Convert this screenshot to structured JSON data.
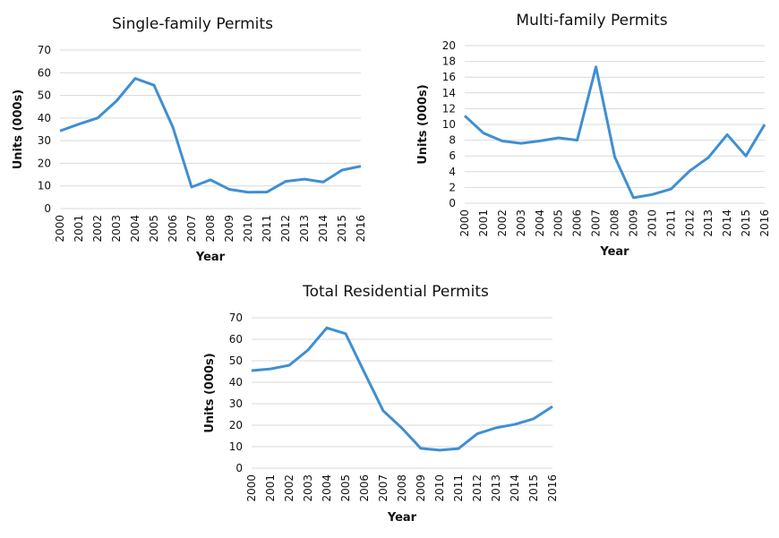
{
  "colors": {
    "line": "#3f8fd2",
    "grid": "#d9d9d9"
  },
  "chart_data": [
    {
      "type": "line",
      "title": "Single-family Permits",
      "xlabel": "Year",
      "ylabel": "Units (000s)",
      "ylim": [
        0,
        70
      ],
      "yticks": [
        0,
        10,
        20,
        30,
        40,
        50,
        60,
        70
      ],
      "grid": true,
      "categories": [
        "2000",
        "2001",
        "2002",
        "2003",
        "2004",
        "2005",
        "2006",
        "2007",
        "2008",
        "2009",
        "2010",
        "2011",
        "2012",
        "2013",
        "2014",
        "2015",
        "2016"
      ],
      "values": [
        34.3,
        37.3,
        40,
        47.5,
        57.5,
        54.5,
        36,
        9.5,
        12.7,
        8.5,
        7.2,
        7.3,
        12,
        13,
        11.7,
        17,
        18.7
      ]
    },
    {
      "type": "line",
      "title": "Multi-family Permits",
      "xlabel": "Year",
      "ylabel": "Units (000s)",
      "ylim": [
        0,
        20
      ],
      "yticks": [
        0,
        2,
        4,
        6,
        8,
        10,
        12,
        14,
        16,
        18,
        20
      ],
      "grid": true,
      "categories": [
        "2000",
        "2001",
        "2002",
        "2003",
        "2004",
        "2005",
        "2006",
        "2007",
        "2008",
        "2009",
        "2010",
        "2011",
        "2012",
        "2013",
        "2014",
        "2015",
        "2016"
      ],
      "values": [
        11.1,
        8.9,
        7.9,
        7.6,
        7.9,
        8.3,
        8.0,
        17.3,
        5.9,
        0.7,
        1.1,
        1.8,
        4.1,
        5.8,
        8.7,
        6.0,
        10.0
      ]
    },
    {
      "type": "line",
      "title": "Total Residential Permits",
      "xlabel": "Year",
      "ylabel": "Units (000s)",
      "ylim": [
        0,
        70
      ],
      "yticks": [
        0,
        10,
        20,
        30,
        40,
        50,
        60,
        70
      ],
      "grid": true,
      "categories": [
        "2000",
        "2001",
        "2002",
        "2003",
        "2004",
        "2005",
        "2006",
        "2007",
        "2008",
        "2009",
        "2010",
        "2011",
        "2012",
        "2013",
        "2014",
        "2015",
        "2016"
      ],
      "values": [
        45.4,
        46.2,
        47.9,
        55,
        65.3,
        62.6,
        44.5,
        26.7,
        18.6,
        9.2,
        8.4,
        9.1,
        16,
        18.8,
        20.4,
        23,
        28.7
      ]
    }
  ]
}
